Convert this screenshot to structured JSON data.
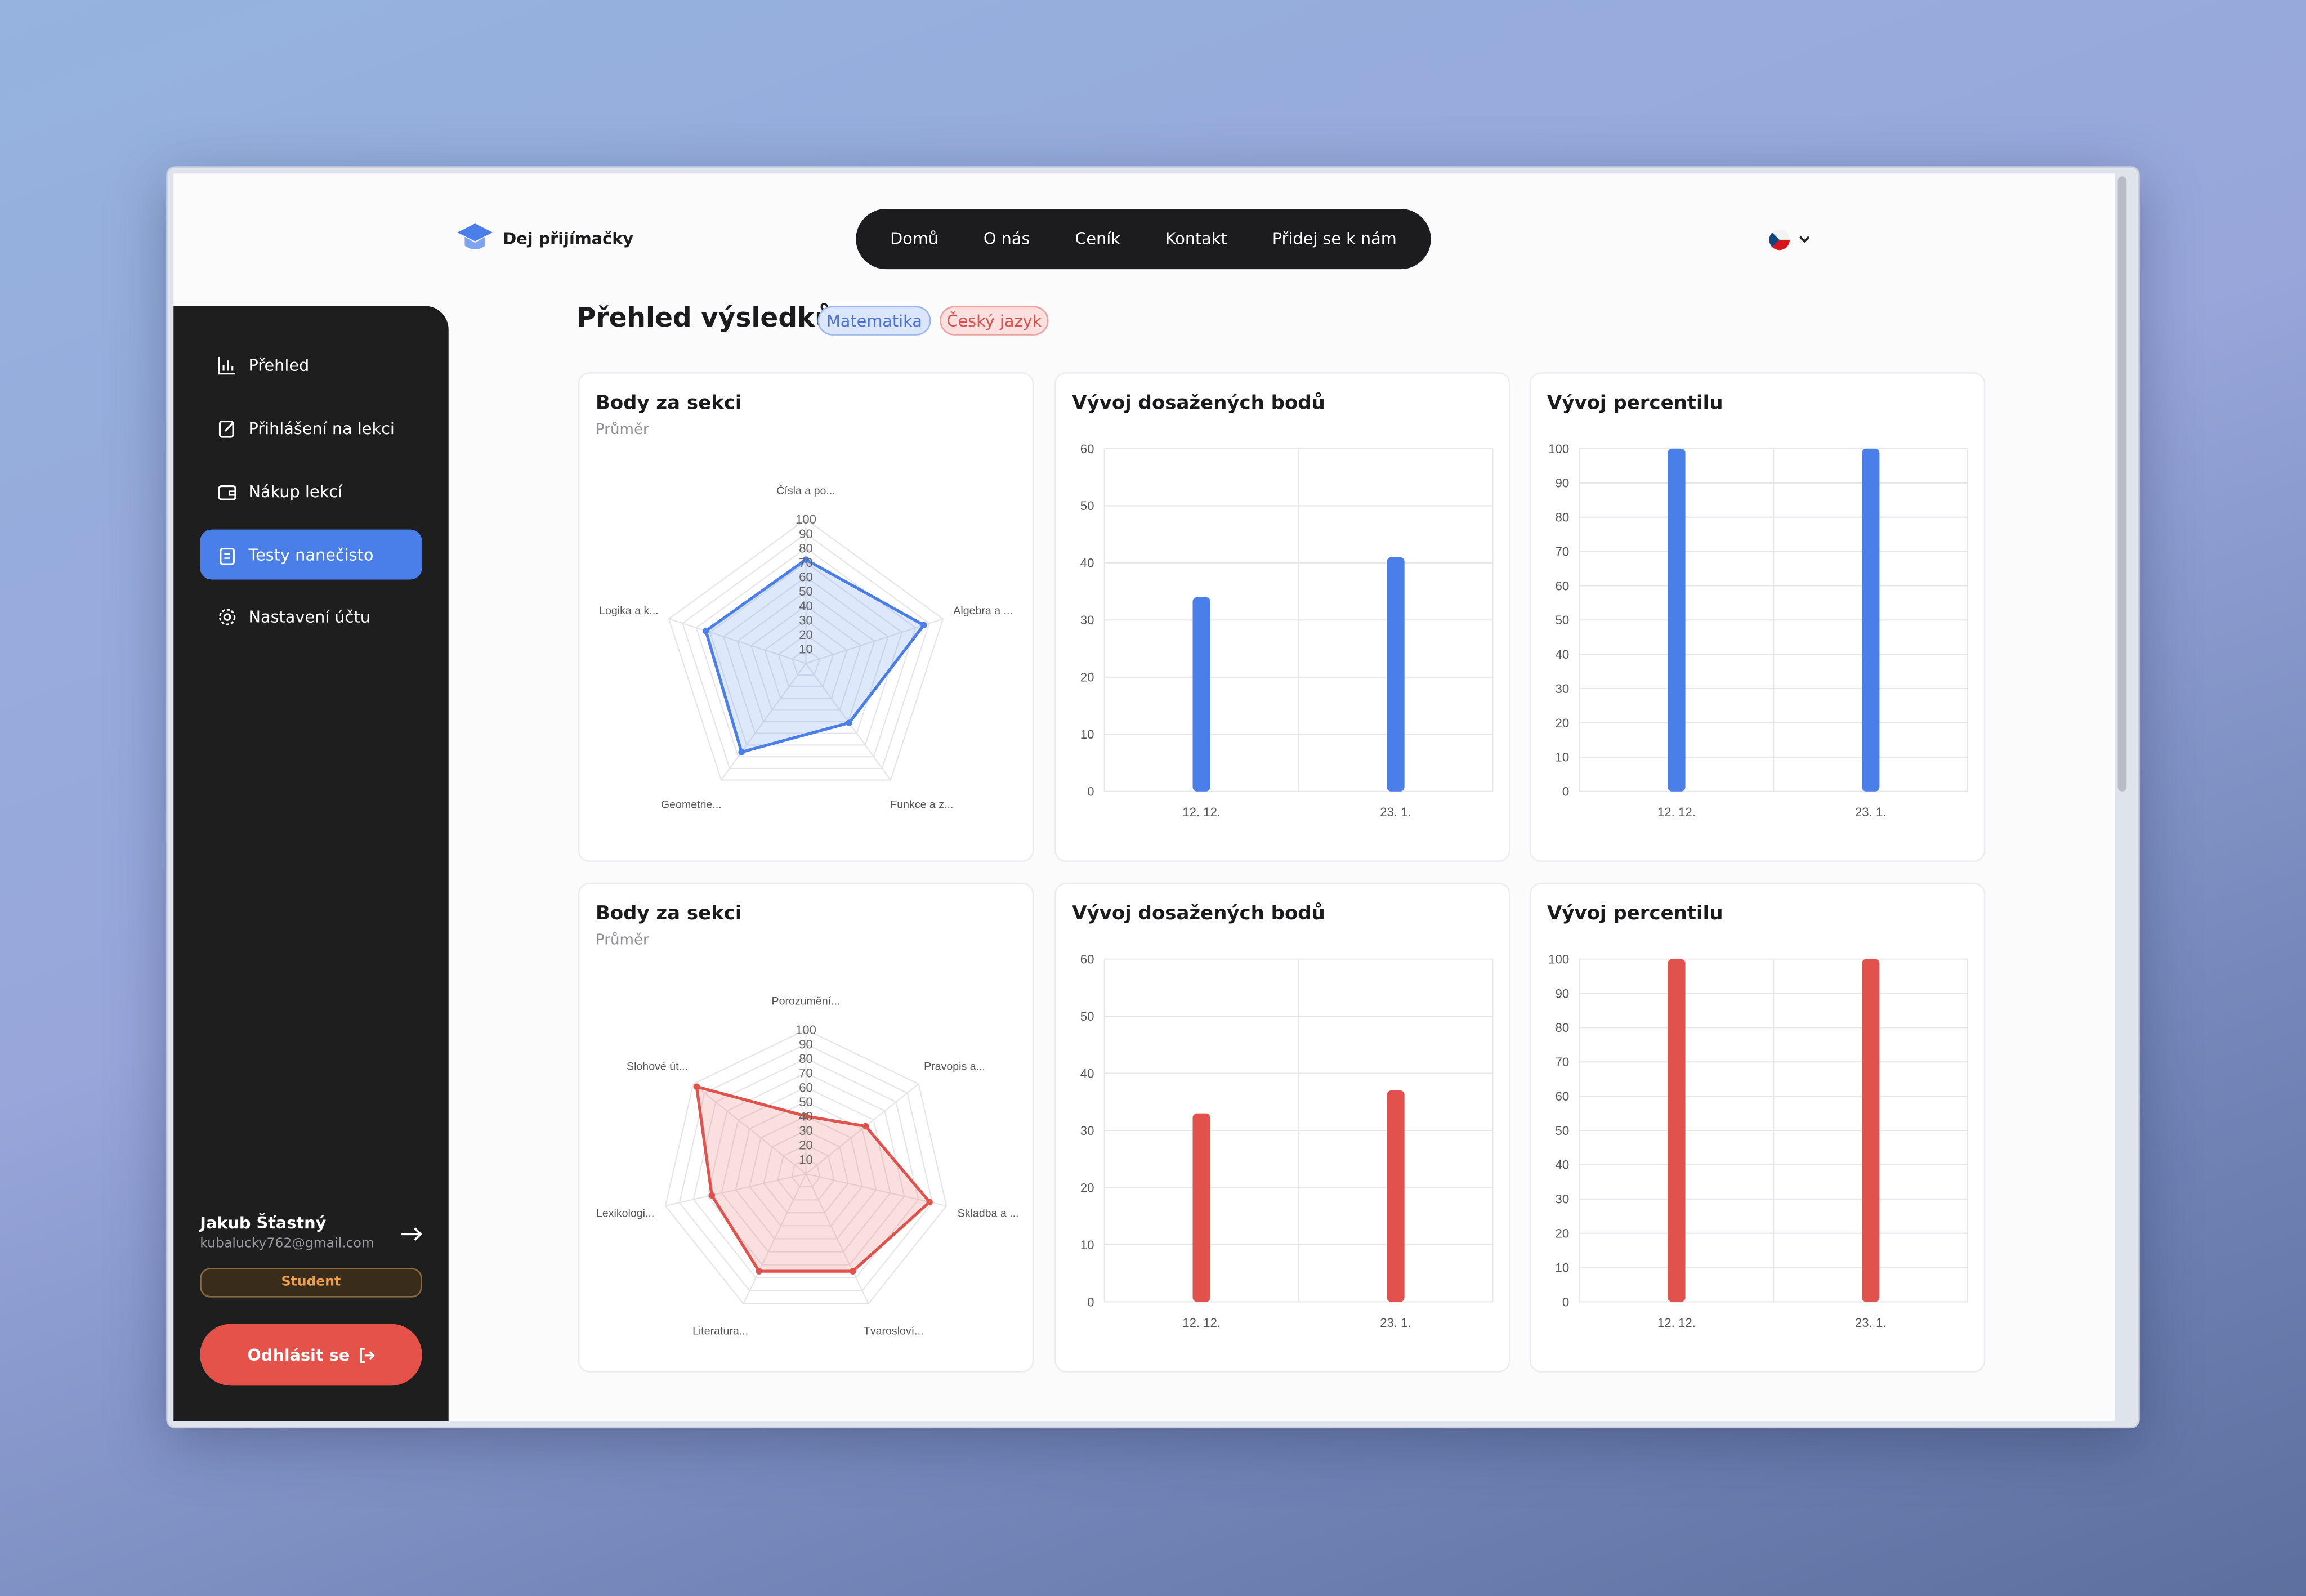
{
  "header": {
    "logo": "Dej přijímačky",
    "nav": [
      "Domů",
      "O nás",
      "Ceník",
      "Kontakt",
      "Přidej se k nám"
    ]
  },
  "sidebar": {
    "menu": [
      "Přehled",
      "Přihlášení na lekci",
      "Nákup lekcí",
      "Testy nanečisto",
      "Nastavení účtu"
    ],
    "user": {
      "name": "Jakub Šťastný",
      "email": "kubalucky762@gmail.com",
      "role": "Student"
    },
    "logout": "Odhlásit se"
  },
  "page": {
    "title": "Přehled výsledků",
    "tags": [
      "Matematika",
      "Český jazyk"
    ]
  },
  "chart_data": [
    {
      "type": "radar",
      "title": "Body za sekci",
      "subtitle": "Průměr",
      "categories": [
        "Čísla a po...",
        "Algebra a ...",
        "Funkce a z...",
        "Geometrie...",
        "Logika a k..."
      ],
      "values": [
        72,
        86,
        51,
        76,
        73
      ],
      "color": "#4a7ee8",
      "rlim": [
        0,
        100
      ],
      "rticks": [
        10,
        20,
        30,
        40,
        50,
        60,
        70,
        80,
        90,
        100
      ]
    },
    {
      "type": "bar",
      "title": "Vývoj dosažených bodů",
      "categories": [
        "12. 12.",
        "23. 1."
      ],
      "values": [
        34,
        41
      ],
      "color": "#4a7ee8",
      "ylim": [
        0,
        60
      ],
      "yticks": [
        0,
        10,
        20,
        30,
        40,
        50,
        60
      ],
      "grid": true
    },
    {
      "type": "bar",
      "title": "Vývoj percentilu",
      "categories": [
        "12. 12.",
        "23. 1."
      ],
      "values": [
        100,
        100
      ],
      "color": "#4a7ee8",
      "ylim": [
        0,
        100
      ],
      "yticks": [
        0,
        10,
        20,
        30,
        40,
        50,
        60,
        70,
        80,
        90,
        100
      ],
      "grid": true
    },
    {
      "type": "radar",
      "title": "Body za sekci",
      "subtitle": "Průměr",
      "categories": [
        "Porozumění...",
        "Pravopis a...",
        "Skladba a ...",
        "Tvarosloví...",
        "Literatura...",
        "Lexikologi...",
        "Slohové út..."
      ],
      "values": [
        40,
        53,
        88,
        75,
        75,
        67,
        97
      ],
      "color": "#e0524b",
      "rlim": [
        0,
        100
      ],
      "rticks": [
        10,
        20,
        30,
        40,
        50,
        60,
        70,
        80,
        90,
        100
      ]
    },
    {
      "type": "bar",
      "title": "Vývoj dosažených bodů",
      "categories": [
        "12. 12.",
        "23. 1."
      ],
      "values": [
        33,
        37
      ],
      "color": "#e0524b",
      "ylim": [
        0,
        60
      ],
      "yticks": [
        0,
        10,
        20,
        30,
        40,
        50,
        60
      ],
      "grid": true
    },
    {
      "type": "bar",
      "title": "Vývoj percentilu",
      "categories": [
        "12. 12.",
        "23. 1."
      ],
      "values": [
        100,
        100
      ],
      "color": "#e0524b",
      "ylim": [
        0,
        100
      ],
      "yticks": [
        0,
        10,
        20,
        30,
        40,
        50,
        60,
        70,
        80,
        90,
        100
      ],
      "grid": true
    }
  ]
}
